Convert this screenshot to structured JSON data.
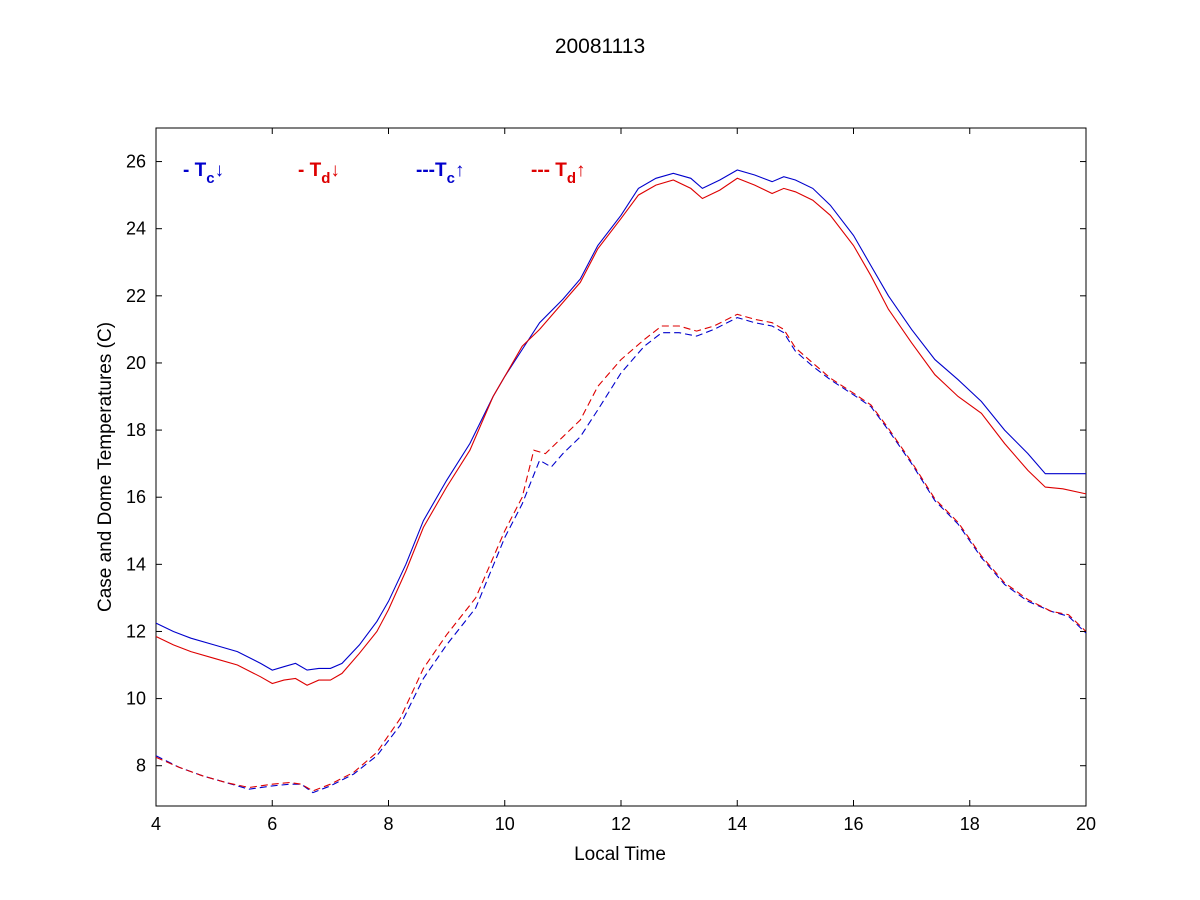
{
  "chart_data": {
    "type": "line",
    "title": "20081113",
    "xlabel": "Local Time",
    "ylabel": "Case and Dome Temperatures (C)",
    "xlim": [
      4,
      20
    ],
    "ylim": [
      6.8,
      27.0
    ],
    "xticks": [
      4,
      6,
      8,
      10,
      12,
      14,
      16,
      18,
      20
    ],
    "yticks": [
      8,
      10,
      12,
      14,
      16,
      18,
      20,
      22,
      24,
      26
    ],
    "grid": false,
    "legend_position": "top-left inside",
    "legend": [
      {
        "id": "tc_down",
        "prefix": "- ",
        "symbol": "T",
        "sub": "c",
        "arrow": "↓",
        "color": "#0000cc"
      },
      {
        "id": "td_down",
        "prefix": "- ",
        "symbol": "T",
        "sub": "d",
        "arrow": "↓",
        "color": "#dd0000"
      },
      {
        "id": "tc_up",
        "prefix": "---",
        "symbol": "T",
        "sub": "c",
        "arrow": "↑",
        "color": "#0000cc"
      },
      {
        "id": "td_up",
        "prefix": "--- ",
        "symbol": "T",
        "sub": "d",
        "arrow": "↑",
        "color": "#dd0000"
      }
    ],
    "series": [
      {
        "id": "tc_down",
        "color": "#0000cc",
        "style": "solid",
        "points": [
          [
            4.0,
            12.25
          ],
          [
            4.3,
            12.0
          ],
          [
            4.6,
            11.8
          ],
          [
            5.0,
            11.6
          ],
          [
            5.4,
            11.4
          ],
          [
            5.8,
            11.05
          ],
          [
            6.0,
            10.85
          ],
          [
            6.2,
            10.95
          ],
          [
            6.4,
            11.05
          ],
          [
            6.6,
            10.85
          ],
          [
            6.8,
            10.9
          ],
          [
            7.0,
            10.9
          ],
          [
            7.2,
            11.05
          ],
          [
            7.5,
            11.6
          ],
          [
            7.8,
            12.3
          ],
          [
            8.0,
            12.9
          ],
          [
            8.3,
            14.0
          ],
          [
            8.6,
            15.3
          ],
          [
            9.0,
            16.5
          ],
          [
            9.4,
            17.6
          ],
          [
            9.8,
            19.0
          ],
          [
            10.0,
            19.6
          ],
          [
            10.3,
            20.4
          ],
          [
            10.6,
            21.2
          ],
          [
            11.0,
            21.9
          ],
          [
            11.3,
            22.5
          ],
          [
            11.6,
            23.5
          ],
          [
            12.0,
            24.4
          ],
          [
            12.3,
            25.2
          ],
          [
            12.6,
            25.5
          ],
          [
            12.9,
            25.65
          ],
          [
            13.2,
            25.5
          ],
          [
            13.4,
            25.2
          ],
          [
            13.7,
            25.45
          ],
          [
            14.0,
            25.75
          ],
          [
            14.3,
            25.6
          ],
          [
            14.6,
            25.4
          ],
          [
            14.8,
            25.55
          ],
          [
            15.0,
            25.45
          ],
          [
            15.3,
            25.2
          ],
          [
            15.6,
            24.7
          ],
          [
            16.0,
            23.8
          ],
          [
            16.3,
            22.9
          ],
          [
            16.6,
            22.0
          ],
          [
            17.0,
            21.0
          ],
          [
            17.4,
            20.1
          ],
          [
            17.8,
            19.5
          ],
          [
            18.2,
            18.85
          ],
          [
            18.6,
            18.0
          ],
          [
            19.0,
            17.3
          ],
          [
            19.3,
            16.7
          ],
          [
            19.6,
            16.7
          ],
          [
            20.0,
            16.7
          ]
        ]
      },
      {
        "id": "td_down",
        "color": "#dd0000",
        "style": "solid",
        "points": [
          [
            4.0,
            11.85
          ],
          [
            4.3,
            11.6
          ],
          [
            4.6,
            11.4
          ],
          [
            5.0,
            11.2
          ],
          [
            5.4,
            11.0
          ],
          [
            5.8,
            10.65
          ],
          [
            6.0,
            10.45
          ],
          [
            6.2,
            10.55
          ],
          [
            6.4,
            10.6
          ],
          [
            6.6,
            10.4
          ],
          [
            6.8,
            10.55
          ],
          [
            7.0,
            10.55
          ],
          [
            7.2,
            10.75
          ],
          [
            7.5,
            11.35
          ],
          [
            7.8,
            12.0
          ],
          [
            8.0,
            12.65
          ],
          [
            8.3,
            13.8
          ],
          [
            8.6,
            15.1
          ],
          [
            9.0,
            16.3
          ],
          [
            9.4,
            17.4
          ],
          [
            9.8,
            19.0
          ],
          [
            10.0,
            19.6
          ],
          [
            10.3,
            20.5
          ],
          [
            10.6,
            21.0
          ],
          [
            11.0,
            21.8
          ],
          [
            11.3,
            22.4
          ],
          [
            11.6,
            23.4
          ],
          [
            12.0,
            24.3
          ],
          [
            12.3,
            25.0
          ],
          [
            12.6,
            25.3
          ],
          [
            12.9,
            25.45
          ],
          [
            13.2,
            25.2
          ],
          [
            13.4,
            24.9
          ],
          [
            13.7,
            25.15
          ],
          [
            14.0,
            25.5
          ],
          [
            14.3,
            25.3
          ],
          [
            14.6,
            25.05
          ],
          [
            14.8,
            25.2
          ],
          [
            15.0,
            25.1
          ],
          [
            15.3,
            24.85
          ],
          [
            15.6,
            24.4
          ],
          [
            16.0,
            23.5
          ],
          [
            16.3,
            22.6
          ],
          [
            16.6,
            21.6
          ],
          [
            17.0,
            20.6
          ],
          [
            17.4,
            19.65
          ],
          [
            17.8,
            19.0
          ],
          [
            18.2,
            18.5
          ],
          [
            18.6,
            17.6
          ],
          [
            19.0,
            16.8
          ],
          [
            19.3,
            16.3
          ],
          [
            19.6,
            16.25
          ],
          [
            20.0,
            16.1
          ]
        ]
      },
      {
        "id": "tc_up",
        "color": "#0000cc",
        "style": "dashed",
        "points": [
          [
            4.0,
            8.3
          ],
          [
            4.4,
            7.95
          ],
          [
            4.8,
            7.7
          ],
          [
            5.2,
            7.5
          ],
          [
            5.6,
            7.3
          ],
          [
            6.0,
            7.4
          ],
          [
            6.3,
            7.45
          ],
          [
            6.5,
            7.45
          ],
          [
            6.7,
            7.2
          ],
          [
            7.0,
            7.4
          ],
          [
            7.4,
            7.75
          ],
          [
            7.8,
            8.3
          ],
          [
            8.2,
            9.2
          ],
          [
            8.6,
            10.6
          ],
          [
            9.0,
            11.6
          ],
          [
            9.5,
            12.7
          ],
          [
            10.0,
            14.8
          ],
          [
            10.3,
            15.8
          ],
          [
            10.6,
            17.1
          ],
          [
            10.8,
            16.9
          ],
          [
            11.0,
            17.3
          ],
          [
            11.3,
            17.8
          ],
          [
            11.6,
            18.6
          ],
          [
            12.0,
            19.7
          ],
          [
            12.4,
            20.5
          ],
          [
            12.7,
            20.9
          ],
          [
            13.0,
            20.9
          ],
          [
            13.3,
            20.8
          ],
          [
            13.6,
            21.0
          ],
          [
            14.0,
            21.35
          ],
          [
            14.3,
            21.2
          ],
          [
            14.6,
            21.1
          ],
          [
            14.8,
            20.9
          ],
          [
            15.0,
            20.35
          ],
          [
            15.3,
            19.9
          ],
          [
            15.6,
            19.5
          ],
          [
            16.0,
            19.05
          ],
          [
            16.3,
            18.7
          ],
          [
            16.6,
            18.0
          ],
          [
            17.0,
            17.0
          ],
          [
            17.4,
            15.9
          ],
          [
            17.8,
            15.2
          ],
          [
            18.2,
            14.2
          ],
          [
            18.6,
            13.4
          ],
          [
            19.0,
            12.9
          ],
          [
            19.4,
            12.6
          ],
          [
            19.7,
            12.45
          ],
          [
            20.0,
            11.95
          ]
        ]
      },
      {
        "id": "td_up",
        "color": "#dd0000",
        "style": "dashed",
        "points": [
          [
            4.0,
            8.25
          ],
          [
            4.4,
            7.95
          ],
          [
            4.8,
            7.7
          ],
          [
            5.2,
            7.5
          ],
          [
            5.6,
            7.35
          ],
          [
            6.0,
            7.45
          ],
          [
            6.3,
            7.5
          ],
          [
            6.5,
            7.45
          ],
          [
            6.7,
            7.25
          ],
          [
            7.0,
            7.45
          ],
          [
            7.4,
            7.8
          ],
          [
            7.8,
            8.4
          ],
          [
            8.2,
            9.4
          ],
          [
            8.6,
            10.9
          ],
          [
            9.0,
            11.9
          ],
          [
            9.5,
            13.0
          ],
          [
            10.0,
            15.0
          ],
          [
            10.3,
            16.0
          ],
          [
            10.5,
            17.4
          ],
          [
            10.7,
            17.3
          ],
          [
            11.0,
            17.8
          ],
          [
            11.3,
            18.3
          ],
          [
            11.6,
            19.3
          ],
          [
            12.0,
            20.1
          ],
          [
            12.4,
            20.7
          ],
          [
            12.7,
            21.1
          ],
          [
            13.0,
            21.1
          ],
          [
            13.3,
            20.95
          ],
          [
            13.6,
            21.1
          ],
          [
            14.0,
            21.45
          ],
          [
            14.3,
            21.3
          ],
          [
            14.6,
            21.2
          ],
          [
            14.8,
            21.0
          ],
          [
            15.0,
            20.45
          ],
          [
            15.3,
            20.0
          ],
          [
            15.6,
            19.55
          ],
          [
            16.0,
            19.1
          ],
          [
            16.3,
            18.75
          ],
          [
            16.6,
            18.05
          ],
          [
            17.0,
            17.05
          ],
          [
            17.4,
            15.95
          ],
          [
            17.8,
            15.25
          ],
          [
            18.2,
            14.25
          ],
          [
            18.6,
            13.45
          ],
          [
            19.0,
            12.95
          ],
          [
            19.4,
            12.6
          ],
          [
            19.7,
            12.5
          ],
          [
            20.0,
            12.0
          ]
        ]
      }
    ]
  }
}
